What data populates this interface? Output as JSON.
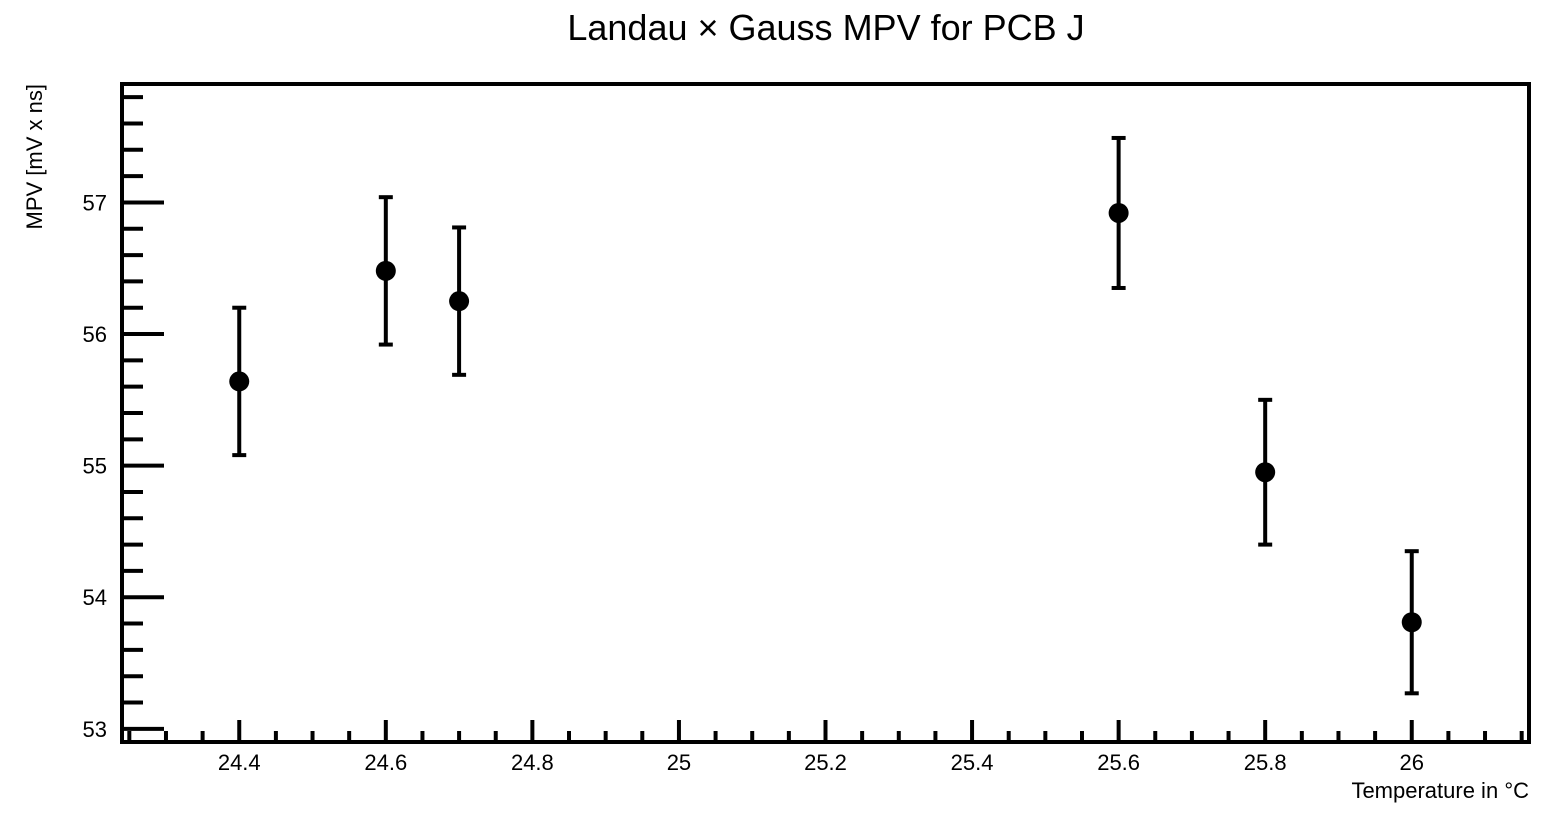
{
  "chart_data": {
    "type": "scatter",
    "title": "Landau × Gauss MPV for PCB J",
    "xlabel": "Temperature in",
    "xlabel_unit": "°C",
    "ylabel": "MPV [mV x ns]",
    "xlim": [
      24.24,
      26.16
    ],
    "ylim": [
      52.9,
      57.9
    ],
    "x_ticks": [
      {
        "value": 24.4,
        "label": "24.4"
      },
      {
        "value": 24.6,
        "label": "24.6"
      },
      {
        "value": 24.8,
        "label": "24.8"
      },
      {
        "value": 25.0,
        "label": "25"
      },
      {
        "value": 25.2,
        "label": "25.2"
      },
      {
        "value": 25.4,
        "label": "25.4"
      },
      {
        "value": 25.6,
        "label": "25.6"
      },
      {
        "value": 25.8,
        "label": "25.8"
      },
      {
        "value": 26.0,
        "label": "26"
      }
    ],
    "y_ticks": [
      {
        "value": 53,
        "label": "53"
      },
      {
        "value": 54,
        "label": "54"
      },
      {
        "value": 55,
        "label": "55"
      },
      {
        "value": 56,
        "label": "56"
      },
      {
        "value": 57,
        "label": "57"
      }
    ],
    "grid": false,
    "legend": "none",
    "series": [
      {
        "color": "#000000",
        "points": [
          {
            "x": 24.4,
            "y": 55.64,
            "err": 0.56
          },
          {
            "x": 24.6,
            "y": 56.48,
            "err": 0.56
          },
          {
            "x": 24.7,
            "y": 56.25,
            "err": 0.56
          },
          {
            "x": 25.6,
            "y": 56.92,
            "err": 0.57
          },
          {
            "x": 25.8,
            "y": 54.95,
            "err": 0.55
          },
          {
            "x": 26.0,
            "y": 53.81,
            "err": 0.54
          }
        ]
      }
    ]
  }
}
